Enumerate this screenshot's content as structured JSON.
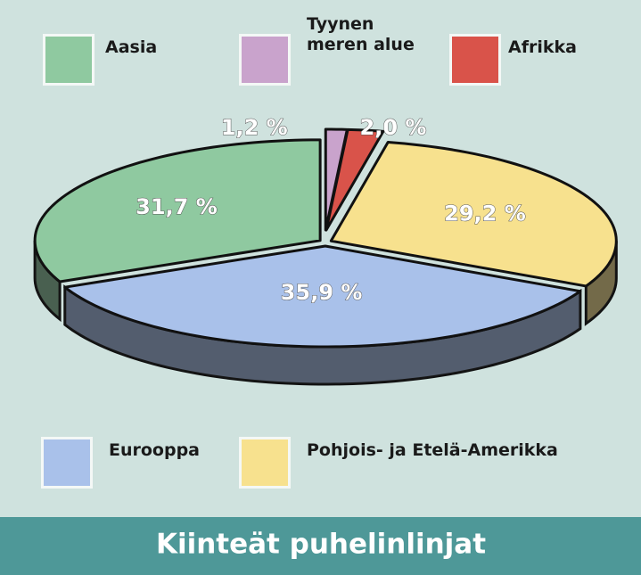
{
  "chart_data": {
    "type": "pie",
    "title": "Kiinteät puhelinlinjat",
    "categories": [
      "Aasia",
      "Tyynen meren alue",
      "Afrikka",
      "Pohjois- ja Etelä-Amerikka",
      "Eurooppa"
    ],
    "values": [
      31.7,
      1.2,
      2.0,
      29.2,
      35.9
    ],
    "value_labels": [
      "31,7 %",
      "1,2 %",
      "2,0 %",
      "29,2 %",
      "35,9 %"
    ],
    "colors": [
      "#8fc9a0",
      "#c9a3cc",
      "#d9534a",
      "#f7e18e",
      "#a9c1ea"
    ]
  }
}
